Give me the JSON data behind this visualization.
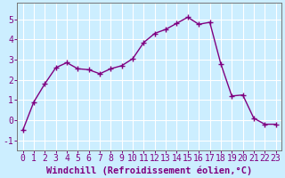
{
  "x": [
    0,
    1,
    2,
    3,
    4,
    5,
    6,
    7,
    8,
    9,
    10,
    11,
    12,
    13,
    14,
    15,
    16,
    17,
    18,
    19,
    20,
    21,
    22,
    23
  ],
  "y": [
    -0.5,
    0.9,
    1.8,
    2.6,
    2.85,
    2.55,
    2.5,
    2.3,
    2.55,
    2.7,
    3.05,
    3.85,
    4.3,
    4.5,
    4.8,
    5.1,
    4.75,
    4.85,
    2.8,
    1.2,
    1.25,
    0.1,
    -0.2,
    -0.2
  ],
  "line_color": "#800080",
  "marker": "+",
  "marker_size": 4,
  "bg_color": "#cceeff",
  "grid_color": "#ffffff",
  "xlabel": "Windchill (Refroidissement éolien,°C)",
  "xlim": [
    -0.5,
    23.5
  ],
  "ylim": [
    -1.5,
    5.8
  ],
  "yticks": [
    -1,
    0,
    1,
    2,
    3,
    4,
    5
  ],
  "xticks": [
    0,
    1,
    2,
    3,
    4,
    5,
    6,
    7,
    8,
    9,
    10,
    11,
    12,
    13,
    14,
    15,
    16,
    17,
    18,
    19,
    20,
    21,
    22,
    23
  ],
  "xlabel_fontsize": 7.5,
  "tick_fontsize": 7,
  "line_width": 1.0,
  "spine_color": "#777777"
}
